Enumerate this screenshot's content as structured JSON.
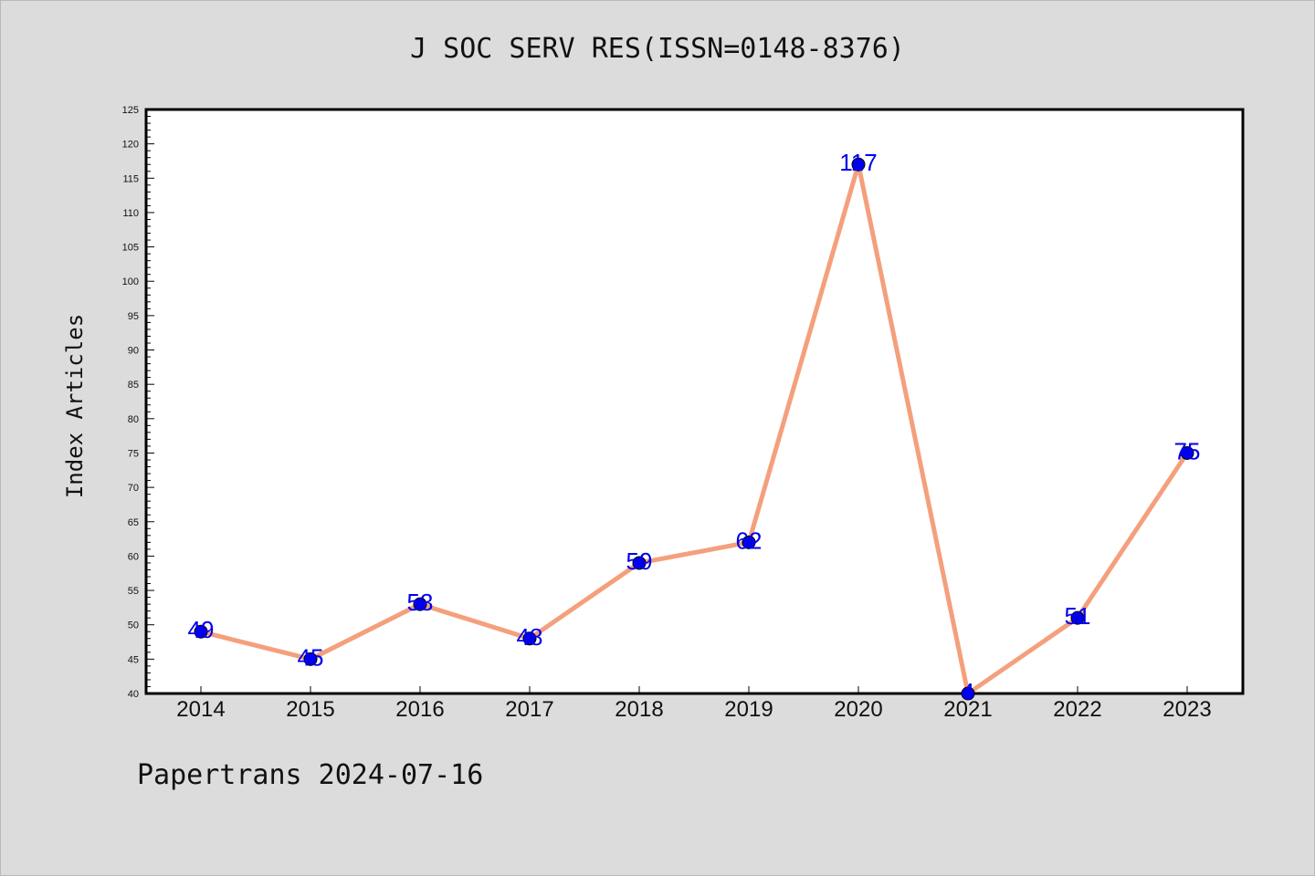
{
  "chart_data": {
    "type": "line",
    "title": "J SOC SERV RES(ISSN=0148-8376)",
    "ylabel": "Index Articles",
    "xlabel": "",
    "categories": [
      "2014",
      "2015",
      "2016",
      "2017",
      "2018",
      "2019",
      "2020",
      "2021",
      "2022",
      "2023"
    ],
    "values": [
      49,
      45,
      53,
      48,
      59,
      62,
      117,
      4,
      51,
      75
    ],
    "data_labels": [
      "49",
      "45",
      "53",
      "48",
      "59",
      "62",
      "117",
      "4",
      "51",
      "75"
    ],
    "ylim": [
      40,
      125
    ],
    "yticks": [
      40,
      45,
      50,
      55,
      60,
      65,
      70,
      75,
      80,
      85,
      90,
      95,
      100,
      105,
      110,
      115,
      120,
      125
    ],
    "line_color": "#f4a07c",
    "marker_color": "#0000ee",
    "label_color": "#0000ee",
    "grid": false,
    "legend": "none"
  },
  "footer": {
    "text": "Papertrans 2024-07-16"
  }
}
